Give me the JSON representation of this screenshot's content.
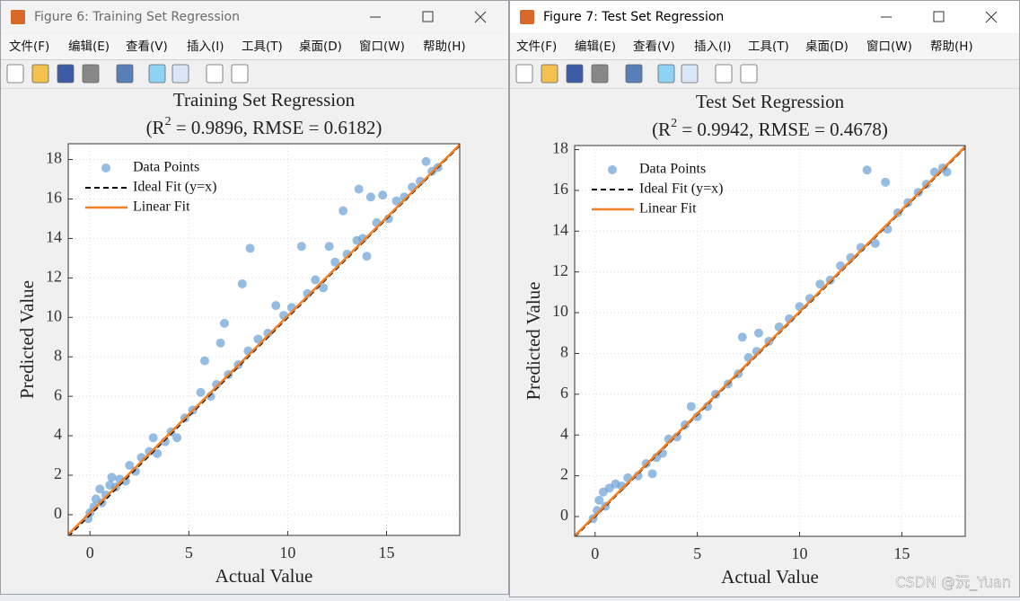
{
  "windows": [
    {
      "title": "Figure 6: Training Set Regression",
      "menu": [
        "文件(F)",
        "编辑(E)",
        "查看(V)",
        "插入(I)",
        "工具(T)",
        "桌面(D)",
        "窗口(W)",
        "帮助(H)"
      ],
      "chart_data": {
        "type": "scatter",
        "title": "Training Set Regression",
        "subtitle": {
          "prefix": "(R",
          "sup": "2",
          "rest": " = 0.9896, RMSE = 0.6182)"
        },
        "xlabel": "Actual Value",
        "ylabel": "Predicted Value",
        "xlim": [
          -1.1,
          18.7
        ],
        "ylim": [
          -1.05,
          18.8
        ],
        "xticks": [
          0,
          5,
          10,
          15
        ],
        "yticks": [
          0,
          2,
          4,
          6,
          8,
          10,
          12,
          14,
          16,
          18
        ],
        "grid": true,
        "legend": "upper left",
        "series": [
          {
            "name": "Data Points",
            "type": "scatter",
            "color": "#6a9fd4",
            "x": [
              -0.1,
              0.0,
              0.2,
              0.3,
              0.5,
              0.6,
              0.8,
              1.0,
              1.1,
              1.3,
              1.5,
              1.8,
              2.0,
              2.3,
              2.6,
              3.0,
              3.2,
              3.4,
              3.8,
              4.1,
              4.4,
              4.8,
              5.2,
              5.6,
              5.8,
              6.1,
              6.4,
              6.6,
              6.8,
              7.0,
              7.5,
              7.7,
              8.0,
              8.1,
              8.5,
              9.0,
              9.4,
              9.8,
              10.2,
              10.7,
              11.0,
              11.4,
              11.8,
              12.1,
              12.4,
              12.8,
              13.0,
              13.5,
              13.6,
              13.8,
              14.0,
              14.2,
              14.5,
              14.8,
              15.1,
              15.5,
              15.9,
              16.3,
              16.7,
              17.0,
              17.3,
              17.6
            ],
            "values": [
              -0.2,
              0.1,
              0.4,
              0.8,
              1.3,
              0.6,
              1.0,
              1.5,
              1.9,
              1.4,
              1.8,
              1.7,
              2.5,
              2.2,
              2.9,
              3.2,
              3.9,
              3.1,
              3.7,
              4.2,
              3.9,
              4.9,
              5.3,
              6.2,
              7.8,
              6.0,
              6.6,
              8.7,
              9.7,
              7.1,
              7.6,
              11.7,
              8.3,
              13.5,
              8.9,
              9.2,
              10.6,
              10.1,
              10.5,
              13.6,
              11.2,
              11.9,
              11.5,
              13.6,
              12.8,
              15.4,
              13.2,
              13.9,
              16.5,
              14.0,
              13.1,
              16.1,
              14.8,
              16.2,
              15.0,
              15.9,
              16.1,
              16.6,
              16.9,
              17.9,
              17.4,
              17.6
            ]
          },
          {
            "name": "Ideal Fit (y=x)",
            "type": "line",
            "dash": true,
            "color": "#000000",
            "x": [
              -1.1,
              18.7
            ],
            "values": [
              -1.1,
              18.7
            ]
          },
          {
            "name": "Linear Fit",
            "type": "line",
            "dash": false,
            "color": "#f28023",
            "x": [
              -1.1,
              18.7
            ],
            "values": [
              -1.0,
              18.75
            ]
          }
        ]
      }
    },
    {
      "title": "Figure 7: Test Set Regression",
      "menu": [
        "文件(F)",
        "编辑(E)",
        "查看(V)",
        "插入(I)",
        "工具(T)",
        "桌面(D)",
        "窗口(W)",
        "帮助(H)"
      ],
      "chart_data": {
        "type": "scatter",
        "title": "Test Set Regression",
        "subtitle": {
          "prefix": "(R",
          "sup": "2",
          "rest": " = 0.9942, RMSE = 0.4678)"
        },
        "xlabel": "Actual Value",
        "ylabel": "Predicted Value",
        "xlim": [
          -1.0,
          18.1
        ],
        "ylim": [
          -0.97,
          18.2
        ],
        "xticks": [
          0,
          5,
          10,
          15
        ],
        "yticks": [
          0,
          2,
          4,
          6,
          8,
          10,
          12,
          14,
          16,
          18
        ],
        "grid": true,
        "legend": "upper left",
        "series": [
          {
            "name": "Data Points",
            "type": "scatter",
            "color": "#6a9fd4",
            "x": [
              -0.1,
              0.1,
              0.2,
              0.4,
              0.5,
              0.7,
              1.0,
              1.3,
              1.6,
              2.1,
              2.5,
              2.8,
              3.0,
              3.3,
              3.6,
              4.0,
              4.4,
              4.7,
              5.0,
              5.5,
              5.9,
              6.5,
              7.0,
              7.2,
              7.5,
              7.9,
              8.0,
              8.5,
              9.0,
              9.5,
              10.0,
              10.5,
              11.0,
              11.5,
              12.0,
              12.5,
              13.0,
              13.3,
              13.7,
              14.2,
              14.3,
              14.8,
              15.3,
              15.8,
              16.2,
              16.6,
              17.0,
              17.2
            ],
            "values": [
              -0.1,
              0.3,
              0.8,
              1.2,
              0.5,
              1.4,
              1.6,
              1.5,
              1.9,
              2.0,
              2.6,
              2.1,
              2.9,
              3.1,
              3.8,
              3.9,
              4.5,
              5.4,
              4.9,
              5.4,
              6.0,
              6.5,
              7.0,
              8.8,
              7.8,
              8.1,
              9.0,
              8.6,
              9.3,
              9.7,
              10.3,
              10.7,
              11.4,
              11.6,
              12.3,
              12.7,
              13.2,
              17.0,
              13.4,
              16.4,
              14.1,
              14.9,
              15.4,
              15.9,
              16.3,
              16.9,
              17.1,
              16.9
            ]
          },
          {
            "name": "Ideal Fit (y=x)",
            "type": "line",
            "dash": true,
            "color": "#000000",
            "x": [
              -1.0,
              18.1
            ],
            "values": [
              -1.0,
              18.1
            ]
          },
          {
            "name": "Linear Fit",
            "type": "line",
            "dash": false,
            "color": "#f28023",
            "x": [
              -1.0,
              18.1
            ],
            "values": [
              -0.95,
              18.15
            ]
          }
        ]
      }
    }
  ],
  "watermark": "CSDN @沅_Yuan"
}
